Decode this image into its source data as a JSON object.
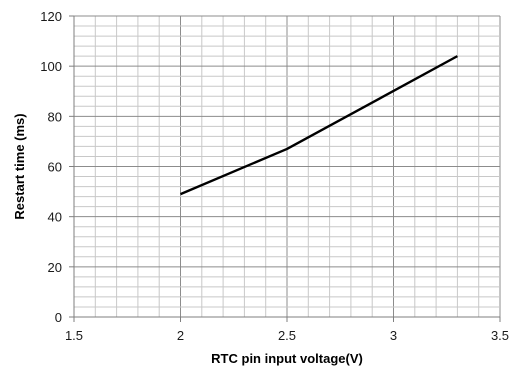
{
  "chart_data": {
    "type": "line",
    "title": "",
    "xlabel": "RTC pin input voltage(V)",
    "ylabel": "Restart time (ms)",
    "xlim": [
      1.5,
      3.5
    ],
    "ylim": [
      0,
      120
    ],
    "x_major_ticks": [
      "1.5",
      "2",
      "2.5",
      "3",
      "3.5"
    ],
    "y_major_ticks": [
      "0",
      "20",
      "40",
      "60",
      "80",
      "100",
      "120"
    ],
    "x_minor_step": 0.1,
    "y_minor_step": 4,
    "grid": true,
    "legend": "none",
    "series": [
      {
        "color": "#000000",
        "x": [
          2.0,
          2.5,
          3.3
        ],
        "y": [
          49,
          67,
          104
        ]
      }
    ]
  }
}
